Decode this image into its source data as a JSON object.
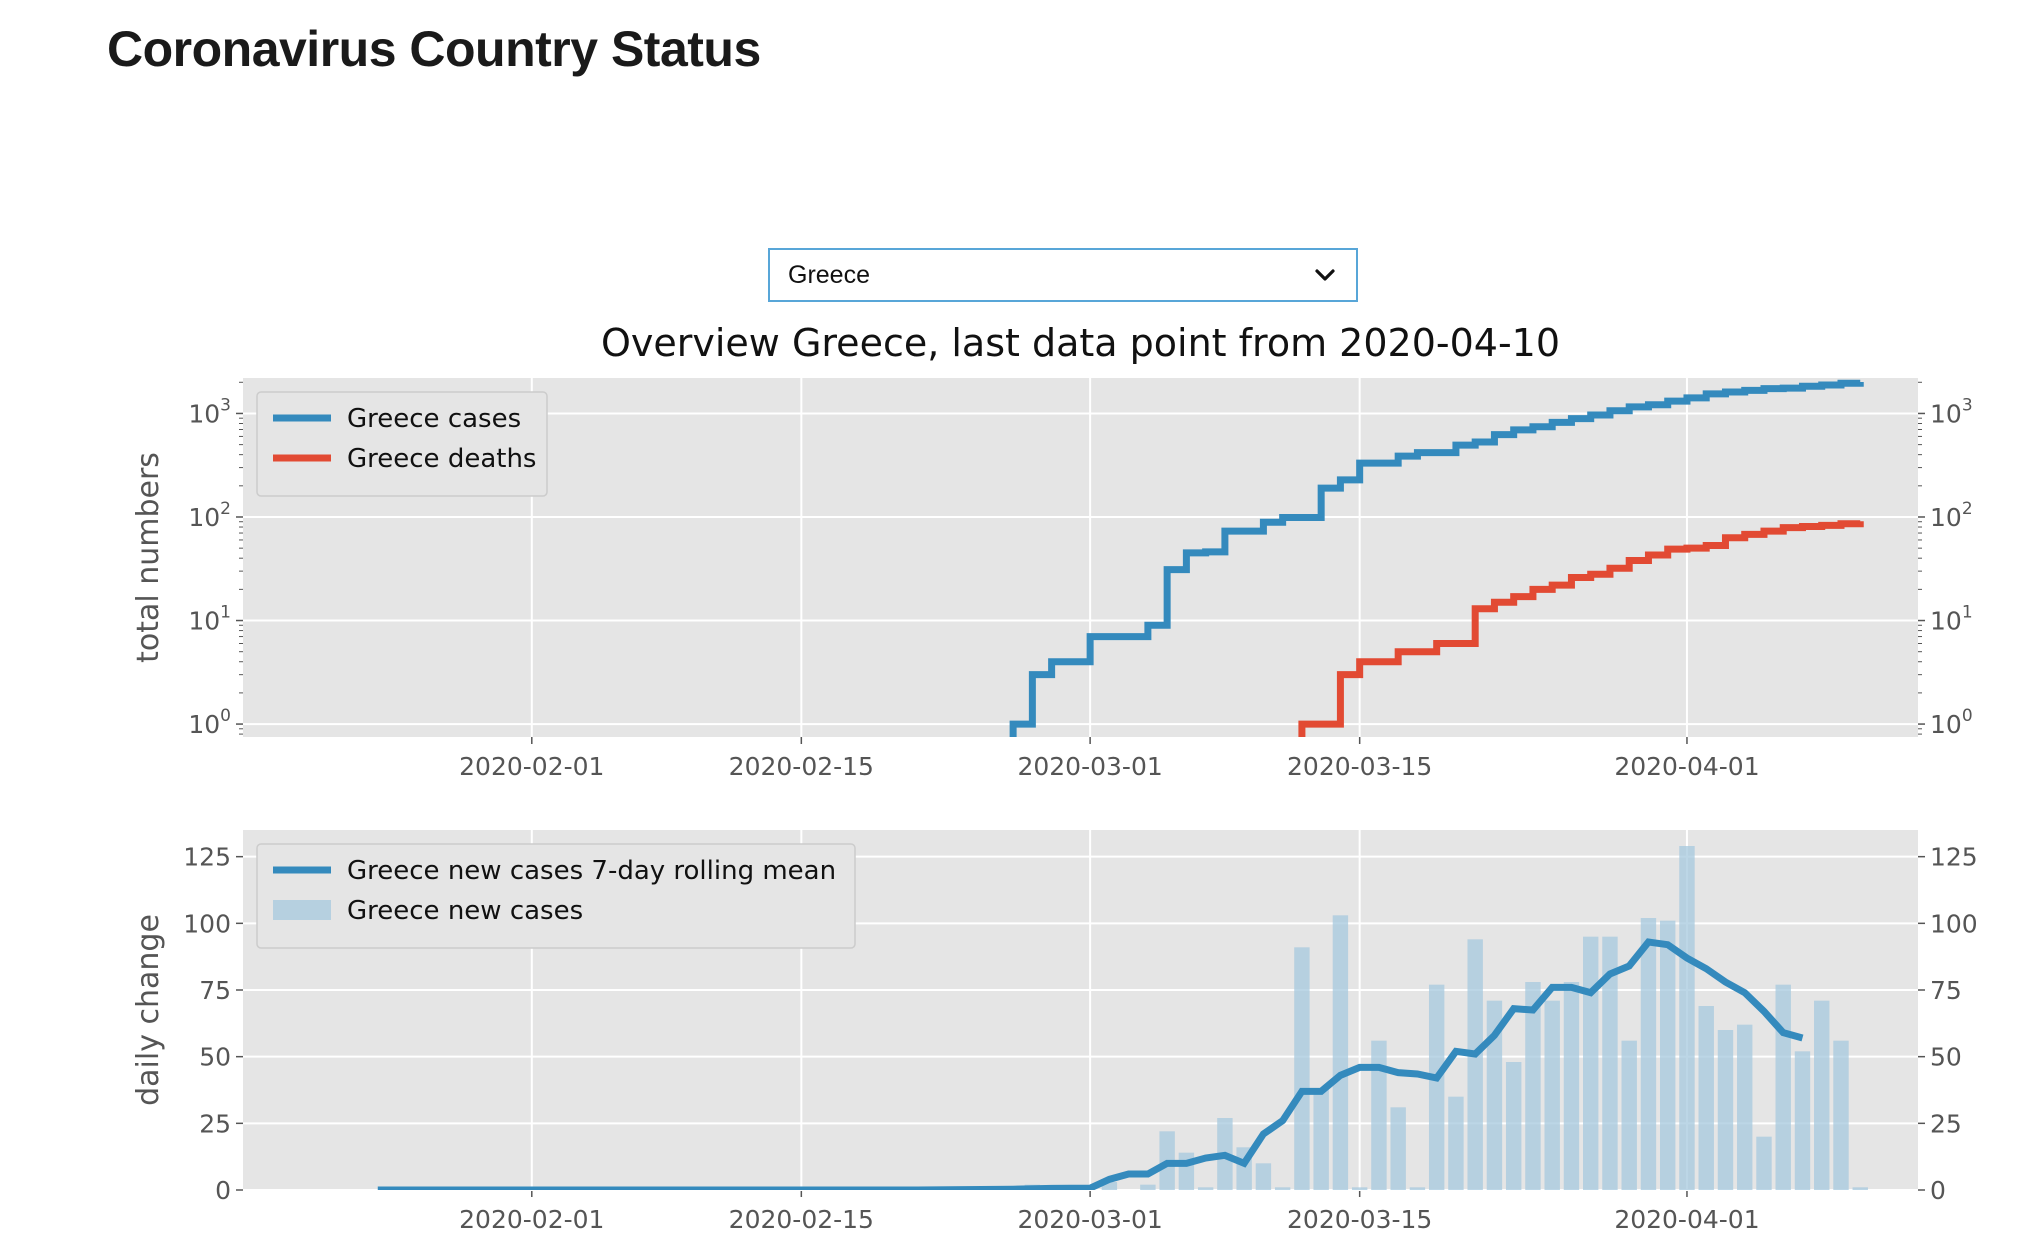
{
  "page": {
    "title": "Coronavirus Country Status"
  },
  "country_select": {
    "selected": "Greece"
  },
  "colors": {
    "cases": "#348abd",
    "deaths": "#e24a33",
    "bars": "#a6c8dd",
    "plot_bg": "#e5e5e5",
    "grid": "#ffffff"
  },
  "chart_data": [
    {
      "type": "line",
      "title": "Overview Greece, last data point from 2020-04-10",
      "xlabel": "",
      "ylabel": "total numbers",
      "yscale": "log",
      "ylim": [
        0.75,
        2200
      ],
      "xlim": [
        "2020-01-17",
        "2020-04-13"
      ],
      "xticks": [
        "2020-02-01",
        "2020-02-15",
        "2020-03-01",
        "2020-03-15",
        "2020-04-01"
      ],
      "yticks": [
        {
          "base": "10",
          "exp": "0",
          "value": 1
        },
        {
          "base": "10",
          "exp": "1",
          "value": 10
        },
        {
          "base": "10",
          "exp": "2",
          "value": 100
        },
        {
          "base": "10",
          "exp": "3",
          "value": 1000
        }
      ],
      "grid": true,
      "legend_position": "top-left",
      "series": [
        {
          "name": "Greece cases",
          "color": "#348abd",
          "step": true,
          "x": [
            "2020-02-26",
            "2020-02-27",
            "2020-02-28",
            "2020-02-29",
            "2020-03-01",
            "2020-03-02",
            "2020-03-03",
            "2020-03-04",
            "2020-03-05",
            "2020-03-06",
            "2020-03-07",
            "2020-03-08",
            "2020-03-09",
            "2020-03-10",
            "2020-03-11",
            "2020-03-12",
            "2020-03-13",
            "2020-03-14",
            "2020-03-15",
            "2020-03-16",
            "2020-03-17",
            "2020-03-18",
            "2020-03-19",
            "2020-03-20",
            "2020-03-21",
            "2020-03-22",
            "2020-03-23",
            "2020-03-24",
            "2020-03-25",
            "2020-03-26",
            "2020-03-27",
            "2020-03-28",
            "2020-03-29",
            "2020-03-30",
            "2020-03-31",
            "2020-04-01",
            "2020-04-02",
            "2020-04-03",
            "2020-04-04",
            "2020-04-05",
            "2020-04-06",
            "2020-04-07",
            "2020-04-08",
            "2020-04-09",
            "2020-04-10"
          ],
          "values": [
            1,
            3,
            4,
            4,
            7,
            7,
            7,
            9,
            31,
            45,
            46,
            73,
            73,
            89,
            99,
            99,
            190,
            228,
            331,
            331,
            387,
            418,
            418,
            495,
            530,
            624,
            695,
            743,
            821,
            892,
            966,
            1061,
            1156,
            1212,
            1314,
            1415,
            1544,
            1613,
            1673,
            1735,
            1755,
            1832,
            1884,
            1955,
            2011
          ]
        },
        {
          "name": "Greece deaths",
          "color": "#e24a33",
          "step": true,
          "x": [
            "2020-03-12",
            "2020-03-13",
            "2020-03-14",
            "2020-03-15",
            "2020-03-16",
            "2020-03-17",
            "2020-03-18",
            "2020-03-19",
            "2020-03-20",
            "2020-03-21",
            "2020-03-22",
            "2020-03-23",
            "2020-03-24",
            "2020-03-25",
            "2020-03-26",
            "2020-03-27",
            "2020-03-28",
            "2020-03-29",
            "2020-03-30",
            "2020-03-31",
            "2020-04-01",
            "2020-04-02",
            "2020-04-03",
            "2020-04-04",
            "2020-04-05",
            "2020-04-06",
            "2020-04-07",
            "2020-04-08",
            "2020-04-09",
            "2020-04-10"
          ],
          "values": [
            1,
            1,
            3,
            4,
            4,
            5,
            5,
            6,
            6,
            13,
            15,
            17,
            20,
            22,
            26,
            28,
            32,
            38,
            43,
            49,
            50,
            53,
            63,
            68,
            73,
            79,
            81,
            83,
            86,
            91
          ]
        }
      ]
    },
    {
      "type": "bar",
      "title": "",
      "xlabel": "",
      "ylabel": "daily change",
      "ylim": [
        0,
        135
      ],
      "xlim": [
        "2020-01-17",
        "2020-04-13"
      ],
      "xticks": [
        "2020-02-01",
        "2020-02-15",
        "2020-03-01",
        "2020-03-15",
        "2020-04-01"
      ],
      "yticks": [
        "0",
        "25",
        "50",
        "75",
        "100",
        "125"
      ],
      "grid": true,
      "legend_position": "top-left",
      "bars": {
        "name": "Greece new cases",
        "color": "#a6c8dd",
        "x": [
          "2020-02-26",
          "2020-02-27",
          "2020-02-28",
          "2020-03-02",
          "2020-03-04",
          "2020-03-05",
          "2020-03-06",
          "2020-03-07",
          "2020-03-08",
          "2020-03-09",
          "2020-03-10",
          "2020-03-11",
          "2020-03-12",
          "2020-03-13",
          "2020-03-14",
          "2020-03-15",
          "2020-03-16",
          "2020-03-17",
          "2020-03-18",
          "2020-03-19",
          "2020-03-20",
          "2020-03-21",
          "2020-03-22",
          "2020-03-23",
          "2020-03-24",
          "2020-03-25",
          "2020-03-26",
          "2020-03-27",
          "2020-03-28",
          "2020-03-29",
          "2020-03-30",
          "2020-03-31",
          "2020-04-01",
          "2020-04-02",
          "2020-04-03",
          "2020-04-04",
          "2020-04-05",
          "2020-04-06",
          "2020-04-07",
          "2020-04-08",
          "2020-04-09",
          "2020-04-10"
        ],
        "values": [
          1,
          2,
          1,
          3,
          2,
          22,
          14,
          1,
          27,
          16,
          10,
          1,
          91,
          38,
          103,
          1,
          56,
          31,
          1,
          77,
          35,
          94,
          71,
          48,
          78,
          71,
          78,
          95,
          95,
          56,
          102,
          101,
          129,
          69,
          60,
          62,
          20,
          77,
          52,
          71,
          56,
          1
        ]
      },
      "series": [
        {
          "name": "Greece new cases 7-day rolling mean",
          "color": "#348abd",
          "x": [
            "2020-01-24",
            "2020-01-31",
            "2020-02-07",
            "2020-02-14",
            "2020-02-21",
            "2020-02-26",
            "2020-02-28",
            "2020-03-01",
            "2020-03-02",
            "2020-03-03",
            "2020-03-04",
            "2020-03-05",
            "2020-03-06",
            "2020-03-07",
            "2020-03-08",
            "2020-03-09",
            "2020-03-10",
            "2020-03-11",
            "2020-03-12",
            "2020-03-13",
            "2020-03-14",
            "2020-03-15",
            "2020-03-16",
            "2020-03-17",
            "2020-03-18",
            "2020-03-19",
            "2020-03-20",
            "2020-03-21",
            "2020-03-22",
            "2020-03-23",
            "2020-03-24",
            "2020-03-25",
            "2020-03-26",
            "2020-03-27",
            "2020-03-28",
            "2020-03-29",
            "2020-03-30",
            "2020-03-31",
            "2020-04-01",
            "2020-04-02",
            "2020-04-03",
            "2020-04-04",
            "2020-04-05",
            "2020-04-06",
            "2020-04-07"
          ],
          "values": [
            0,
            0,
            0,
            0,
            0,
            0.3,
            0.6,
            0.7,
            4,
            6,
            6,
            10,
            10,
            12,
            13,
            10,
            21,
            26,
            37,
            37,
            43,
            46,
            46,
            44,
            43.5,
            42,
            52,
            51,
            58,
            68,
            67.5,
            76,
            76,
            74,
            81,
            84,
            93,
            92,
            87,
            83,
            78,
            74,
            67,
            59,
            57
          ]
        }
      ]
    }
  ]
}
